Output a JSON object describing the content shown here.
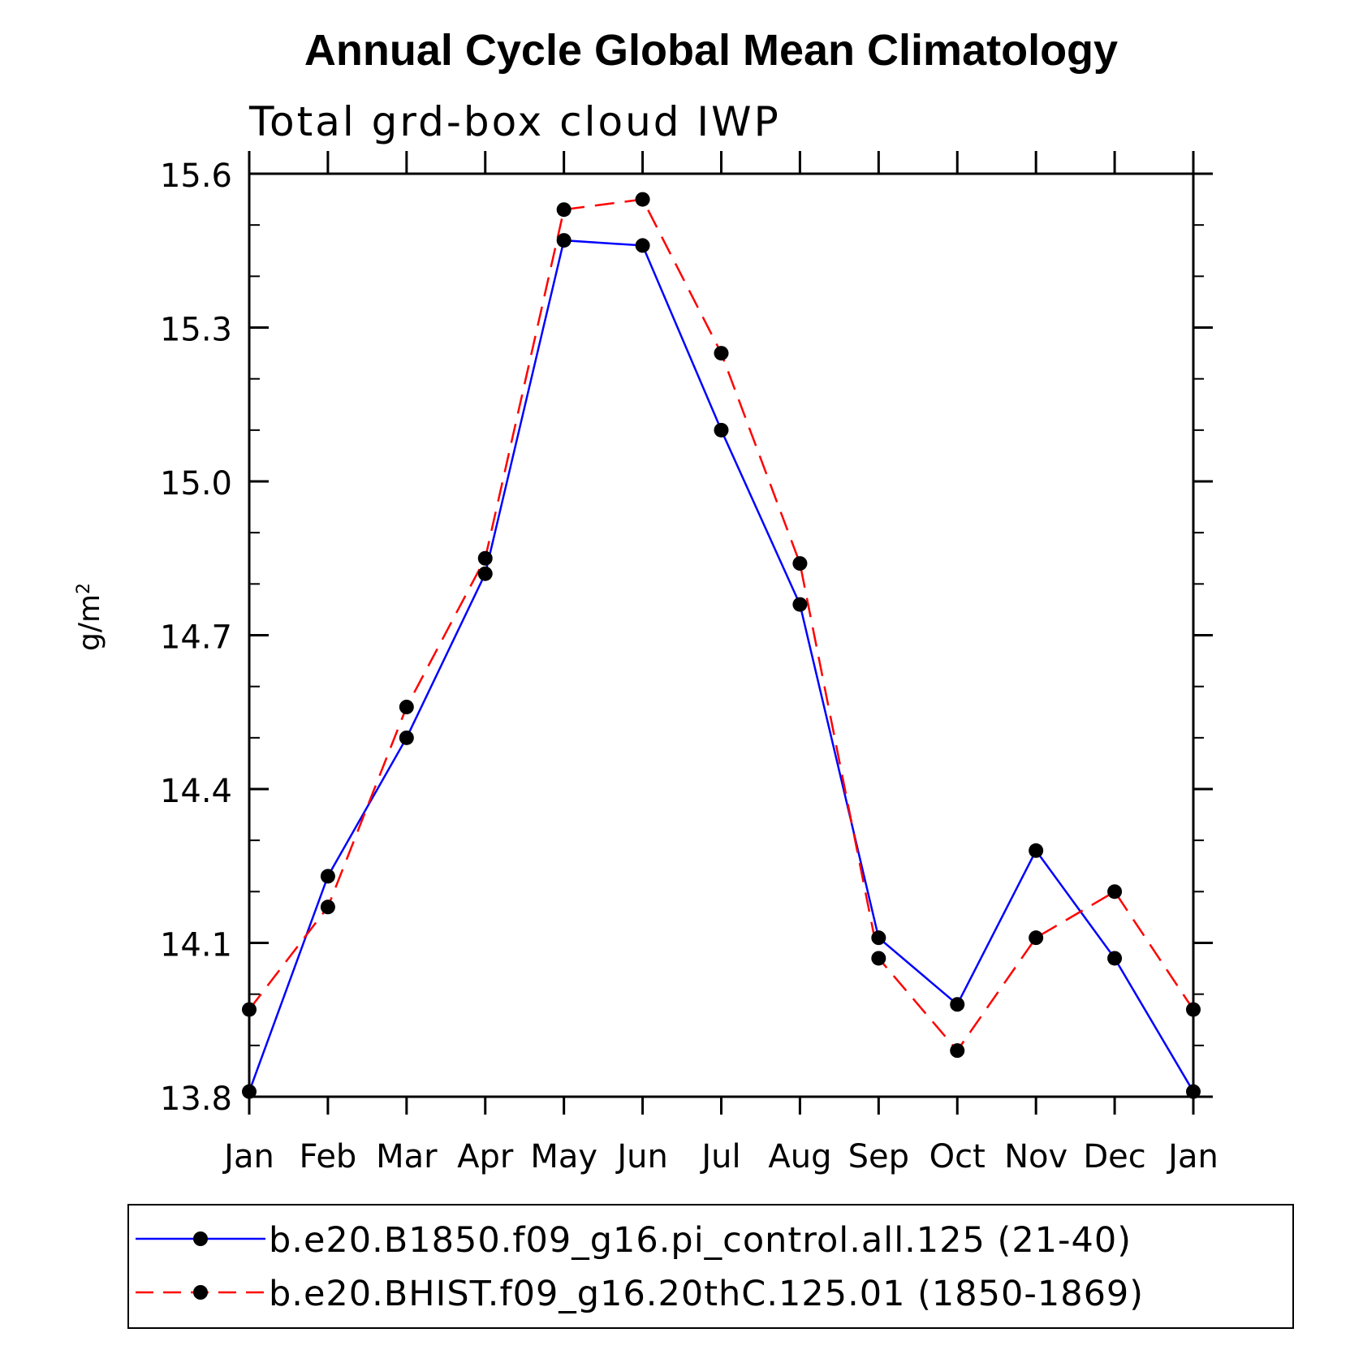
{
  "chart_data": {
    "type": "line",
    "title": "Annual Cycle Global Mean Climatology",
    "subtitle": "Total grd-box cloud IWP",
    "xlabel": "",
    "ylabel": "g/m",
    "ylabel_superscript": "2",
    "categories": [
      "Jan",
      "Feb",
      "Mar",
      "Apr",
      "May",
      "Jun",
      "Jul",
      "Aug",
      "Sep",
      "Oct",
      "Nov",
      "Dec",
      "Jan"
    ],
    "ylim": [
      13.8,
      15.6
    ],
    "yticks": [
      "13.8",
      "14.1",
      "14.4",
      "14.7",
      "15.0",
      "15.3",
      "15.6"
    ],
    "series": [
      {
        "name": "b.e20.B1850.f09_g16.pi_control.all.125 (21-40)",
        "color": "#0000ff",
        "style": "solid",
        "values": [
          13.81,
          14.23,
          14.5,
          14.82,
          15.47,
          15.46,
          15.1,
          14.76,
          14.11,
          13.98,
          14.28,
          14.07,
          13.81
        ]
      },
      {
        "name": "b.e20.BHIST.f09_g16.20thC.125.01 (1850-1869)",
        "color": "#ff0000",
        "style": "dashed",
        "values": [
          13.97,
          14.17,
          14.56,
          14.85,
          15.53,
          15.55,
          15.25,
          14.84,
          14.07,
          13.89,
          14.11,
          14.2,
          13.97
        ]
      }
    ],
    "legend_position": "bottom"
  }
}
